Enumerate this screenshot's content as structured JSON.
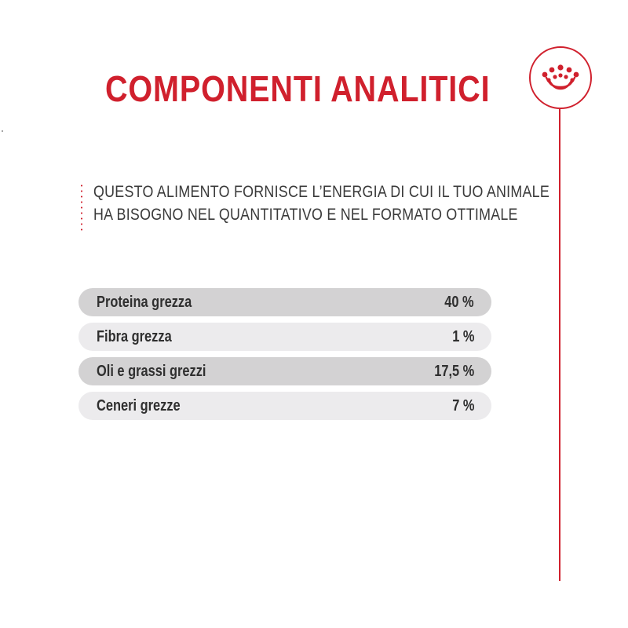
{
  "title": "COMPONENTI ANALITICI",
  "logo": {
    "icon": "crown-icon",
    "color": "#d0202d"
  },
  "intro": {
    "line1": "QUESTO ALIMENTO FORNISCE L’ENERGIA DI CUI IL TUO ANIMALE",
    "line2": "HA BISOGNO NEL QUANTITATIVO E NEL FORMATO OTTIMALE"
  },
  "analytical_components": [
    {
      "label": "Proteina grezza",
      "value": "40 %"
    },
    {
      "label": "Fibra grezza",
      "value": "1 %"
    },
    {
      "label": "Oli e grassi grezzi",
      "value": "17,5 %"
    },
    {
      "label": "Ceneri grezze",
      "value": "7 %"
    }
  ],
  "colors": {
    "brand_red": "#d0202d",
    "row_dark": "#d3d2d3",
    "row_light": "#ecebed",
    "text": "#2f2f2f"
  }
}
